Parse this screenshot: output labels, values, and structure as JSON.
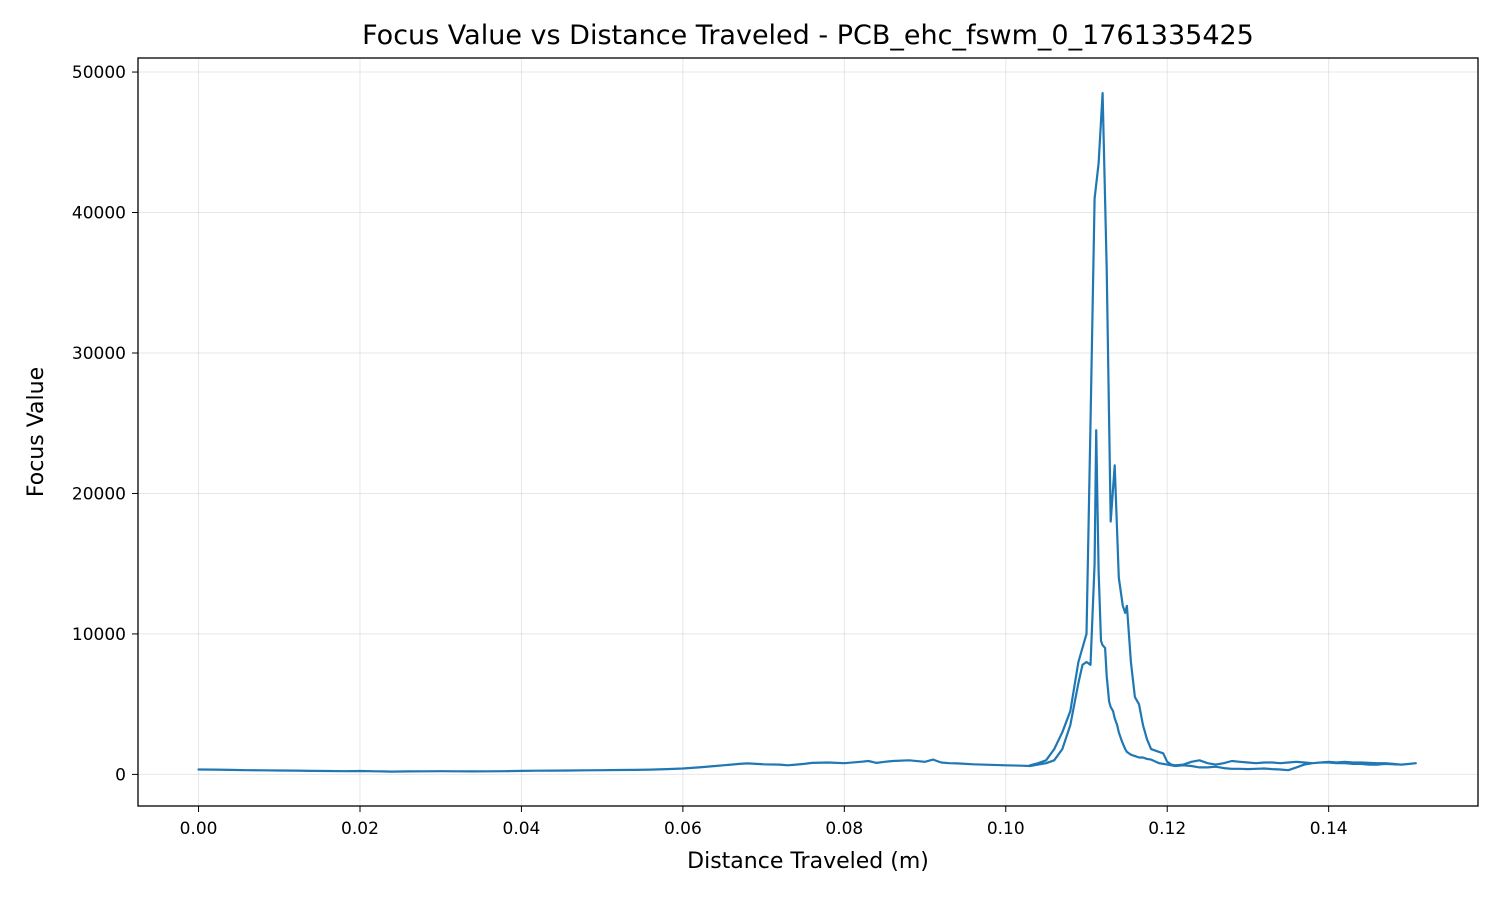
{
  "chart_data": {
    "type": "line",
    "title": "Focus Value vs Distance Traveled - PCB_ehc_fswm_0_1761335425",
    "xlabel": "Distance Traveled (m)",
    "ylabel": "Focus Value",
    "xlim": [
      -0.0075,
      0.1585
    ],
    "ylim": [
      -2250,
      51000
    ],
    "xticks": [
      0.0,
      0.02,
      0.04,
      0.06,
      0.08,
      0.1,
      0.12,
      0.14
    ],
    "xtick_labels": [
      "0.00",
      "0.02",
      "0.04",
      "0.06",
      "0.08",
      "0.10",
      "0.12",
      "0.14"
    ],
    "yticks": [
      0,
      10000,
      20000,
      30000,
      40000,
      50000
    ],
    "ytick_labels": [
      "0",
      "10000",
      "20000",
      "30000",
      "40000",
      "50000"
    ],
    "grid": true,
    "colors": {
      "line": "#1f77b4",
      "grid": "#b0b0b0",
      "axes": "#000000"
    },
    "series": [
      {
        "x": [
          0.0,
          0.002,
          0.004,
          0.006,
          0.008,
          0.01,
          0.012,
          0.014,
          0.016,
          0.018,
          0.02,
          0.022,
          0.024,
          0.026,
          0.028,
          0.03,
          0.032,
          0.034,
          0.036,
          0.038,
          0.04,
          0.042,
          0.044,
          0.046,
          0.048,
          0.05,
          0.052,
          0.054,
          0.056,
          0.058,
          0.06,
          0.062,
          0.064,
          0.065,
          0.066,
          0.067,
          0.068,
          0.07,
          0.072,
          0.073,
          0.074,
          0.075,
          0.076,
          0.078,
          0.08,
          0.082,
          0.083,
          0.084,
          0.085,
          0.086,
          0.088,
          0.09,
          0.091,
          0.092,
          0.093,
          0.094,
          0.096,
          0.098,
          0.1,
          0.102,
          0.103,
          0.104,
          0.105,
          0.106,
          0.107,
          0.108,
          0.109,
          0.1095,
          0.11,
          0.1105,
          0.111,
          0.1112,
          0.1115,
          0.1118,
          0.112,
          0.1123,
          0.1125,
          0.1128,
          0.113,
          0.1133,
          0.1135,
          0.1138,
          0.114,
          0.1143,
          0.1145,
          0.1148,
          0.115,
          0.1155,
          0.116,
          0.1165,
          0.117,
          0.1175,
          0.118,
          0.119,
          0.12,
          0.121,
          0.122,
          0.123,
          0.124,
          0.125,
          0.126,
          0.127,
          0.128,
          0.129,
          0.13,
          0.131,
          0.132,
          0.133,
          0.134,
          0.135,
          0.136,
          0.137,
          0.138,
          0.139,
          0.14,
          0.141,
          0.142,
          0.143,
          0.144,
          0.145,
          0.146,
          0.147,
          0.148,
          0.149,
          0.15,
          0.1508,
          0.15,
          0.149,
          0.148,
          0.147,
          0.146,
          0.145,
          0.144,
          0.143,
          0.142,
          0.141,
          0.14,
          0.139,
          0.138,
          0.137,
          0.136,
          0.135,
          0.134,
          0.133,
          0.132,
          0.131,
          0.13,
          0.129,
          0.128,
          0.127,
          0.126,
          0.125,
          0.124,
          0.123,
          0.122,
          0.121,
          0.1205,
          0.12,
          0.1195,
          0.119,
          0.118,
          0.1175,
          0.117,
          0.1165,
          0.116,
          0.1155,
          0.115,
          0.1148,
          0.1145,
          0.114,
          0.1135,
          0.113,
          0.1125,
          0.112,
          0.1115,
          0.111,
          0.1105,
          0.11,
          0.109,
          0.108,
          0.107,
          0.106,
          0.105,
          0.104,
          0.103
        ],
        "y": [
          350,
          340,
          320,
          300,
          290,
          280,
          270,
          250,
          240,
          230,
          240,
          220,
          200,
          210,
          220,
          230,
          220,
          210,
          220,
          230,
          250,
          260,
          270,
          280,
          290,
          300,
          310,
          320,
          340,
          380,
          420,
          500,
          600,
          650,
          700,
          750,
          780,
          720,
          700,
          650,
          700,
          750,
          820,
          850,
          800,
          900,
          950,
          820,
          900,
          950,
          1000,
          900,
          1050,
          850,
          800,
          780,
          720,
          680,
          650,
          620,
          600,
          700,
          800,
          1000,
          1800,
          3500,
          6500,
          7800,
          8000,
          7800,
          15000,
          24500,
          14500,
          9500,
          9200,
          9000,
          7000,
          5200,
          4800,
          4500,
          4000,
          3500,
          3000,
          2500,
          2200,
          1800,
          1600,
          1400,
          1300,
          1200,
          1200,
          1100,
          1050,
          800,
          700,
          600,
          650,
          600,
          500,
          500,
          550,
          450,
          400,
          400,
          380,
          400,
          420,
          380,
          350,
          300,
          500,
          700,
          800,
          850,
          850,
          800,
          800,
          750,
          750,
          700,
          700,
          750,
          720,
          700,
          750,
          800,
          750,
          700,
          750,
          800,
          800,
          820,
          850,
          850,
          900,
          850,
          900,
          850,
          800,
          850,
          900,
          850,
          800,
          850,
          850,
          800,
          850,
          900,
          950,
          800,
          700,
          800,
          1000,
          900,
          700,
          650,
          700,
          900,
          1500,
          1600,
          1800,
          2500,
          3500,
          5000,
          5500,
          8000,
          12000,
          11500,
          12000,
          14000,
          22000,
          18000,
          36000,
          48500,
          43500,
          41000,
          25000,
          10000,
          8000,
          4500,
          3000,
          1800,
          1000,
          800,
          650
        ]
      }
    ]
  }
}
